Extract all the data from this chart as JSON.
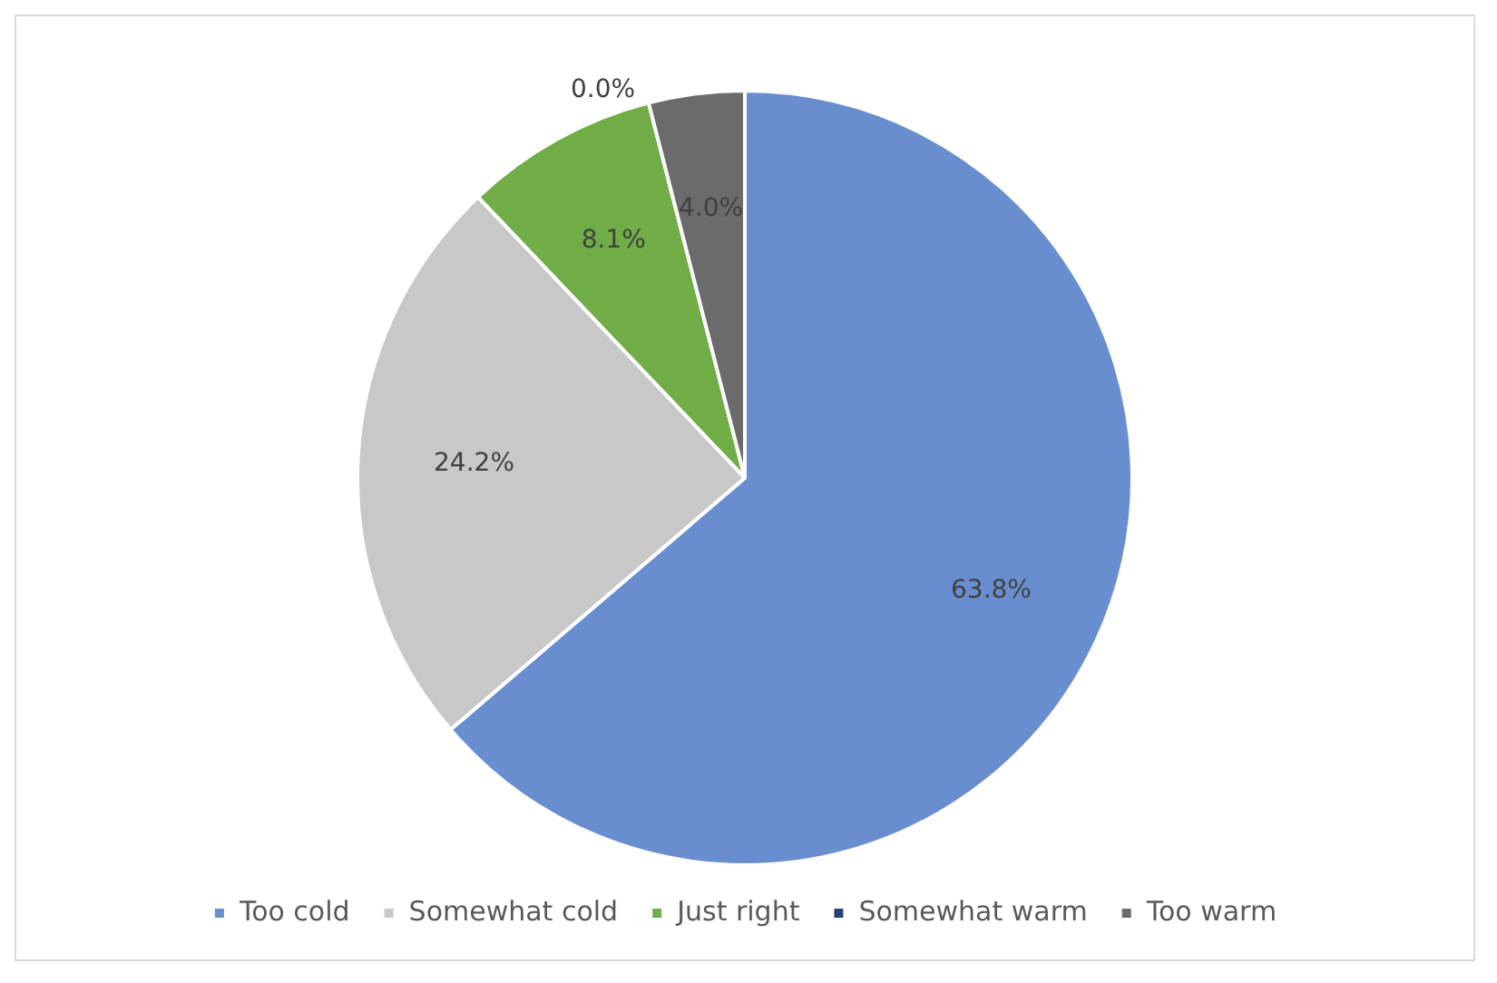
{
  "chart_data": {
    "type": "pie",
    "categories": [
      "Too cold",
      "Somewhat cold",
      "Just right",
      "Somewhat warm",
      "Too warm"
    ],
    "values": [
      63.8,
      24.2,
      8.1,
      0.0,
      4.0
    ],
    "value_labels": [
      "63.8%",
      "24.2%",
      "8.1%",
      "0.0%",
      "4.0%"
    ],
    "colors": [
      "#698ed0",
      "#c8c8c8",
      "#70ad47",
      "#264478",
      "#6b6b6b"
    ],
    "legend": "bottom"
  }
}
